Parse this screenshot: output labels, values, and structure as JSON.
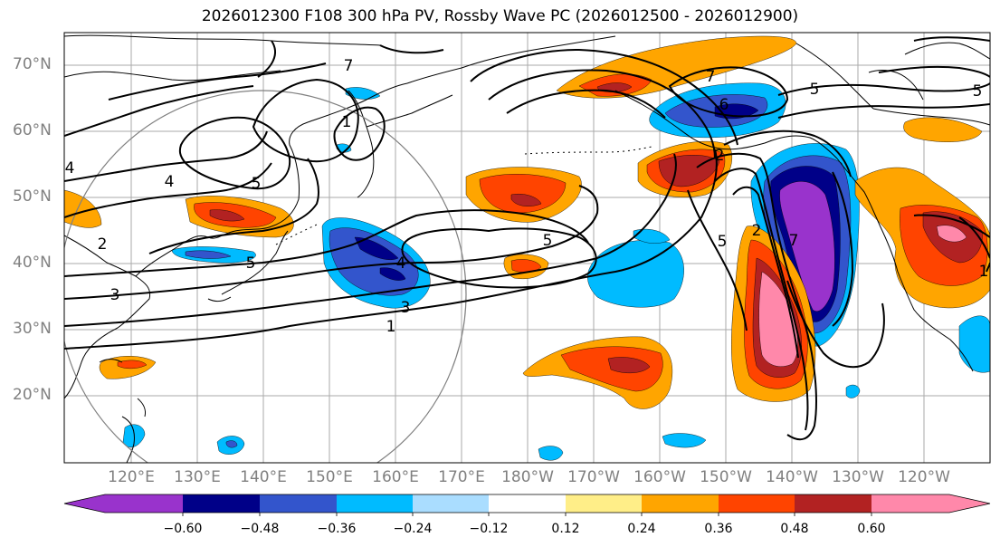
{
  "title": "2026012300 F108 300 hPa PV, Rossby Wave PC (2026012500 - 2026012900)",
  "lat_labels": [
    "70°N",
    "60°N",
    "50°N",
    "40°N",
    "30°N",
    "20°N"
  ],
  "lon_labels": [
    "120°E",
    "130°E",
    "140°E",
    "150°E",
    "160°E",
    "170°E",
    "180°W",
    "170°W",
    "160°W",
    "150°W",
    "140°W",
    "130°W",
    "120°W"
  ],
  "contour_labels": [
    "7",
    "1",
    "5",
    "5",
    "2",
    "6",
    "7",
    "2",
    "5",
    "5",
    "5",
    "4",
    "3",
    "1",
    "7",
    "4",
    "4",
    "1",
    "2",
    "3",
    "5"
  ],
  "colorbar": {
    "ticks": [
      "−0.60",
      "−0.48",
      "−0.36",
      "−0.24",
      "−0.12",
      "0.12",
      "0.24",
      "0.36",
      "0.48",
      "0.60"
    ],
    "colors": [
      "#9933cc",
      "#000088",
      "#3355cc",
      "#00bbff",
      "#aaddff",
      "#ffffff",
      "#ffee88",
      "#ffa500",
      "#ff4400",
      "#b22222",
      "#ff88aa"
    ]
  },
  "colors": {
    "land_line": "#000000",
    "grid": "#aaaaaa",
    "range_circle": "#808080"
  }
}
